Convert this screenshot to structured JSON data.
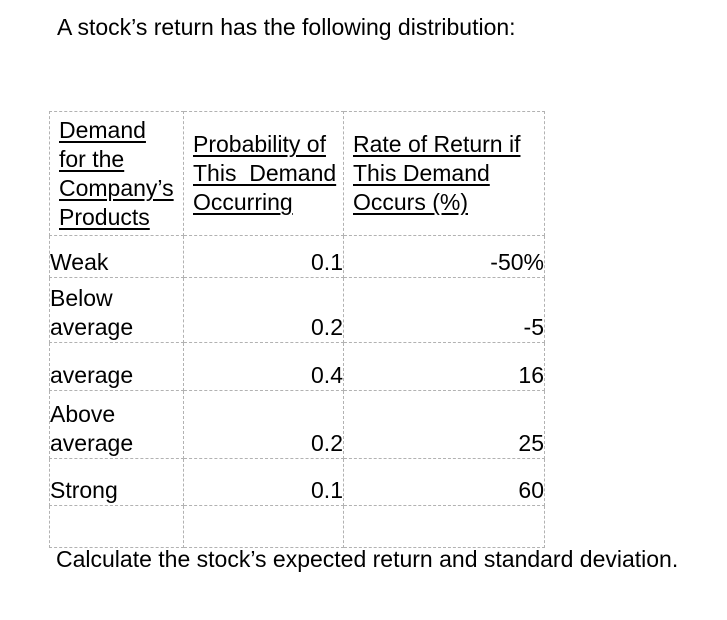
{
  "page": {
    "title": "A stock’s return has the following distribution:",
    "footer": "Calculate the stock’s expected return and standard deviation."
  },
  "table": {
    "headers": [
      "Demand\nfor the\nCompany’s\nProducts",
      "Probability of\nThis  Demand\nOccurring",
      "Rate of Return if\nThis Demand\nOccurs (%)"
    ],
    "rows": [
      {
        "demand": "Weak",
        "probability": "0.1",
        "rate": "-50%"
      },
      {
        "demand": "Below\naverage",
        "probability": "0.2",
        "rate": "-5"
      },
      {
        "demand": "average",
        "probability": "0.4",
        "rate": "16"
      },
      {
        "demand": "Above\naverage",
        "probability": "0.2",
        "rate": "25"
      },
      {
        "demand": "Strong",
        "probability": "0.1",
        "rate": "60"
      },
      {
        "demand": "",
        "probability": "",
        "rate": ""
      }
    ]
  },
  "colors": {
    "text": "#000000",
    "background": "#ffffff",
    "table_border": "#b2b2b2"
  }
}
